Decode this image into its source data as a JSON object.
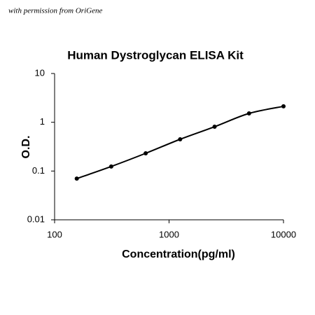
{
  "chart_data": {
    "type": "line",
    "title": "Human Dystroglycan ELISA Kit",
    "annotations": [
      "with permission from OriGene"
    ],
    "x_label": "Concentration(pg/ml)",
    "y_label": "O.D.",
    "x": [
      156.25,
      312.5,
      625,
      1250,
      2500,
      5000,
      10000
    ],
    "series": [
      {
        "color": "#000000",
        "values": [
          0.07,
          0.124,
          0.231,
          0.448,
          0.81,
          1.52,
          2.12
        ]
      }
    ],
    "xlim": [
      100,
      10000
    ],
    "xticks": [
      100,
      1000,
      10000
    ],
    "ylim": [
      0.01,
      10
    ],
    "yticks": [
      0.01,
      0.1,
      1,
      10
    ],
    "xscale": "log",
    "yscale": "log",
    "grid": false
  }
}
